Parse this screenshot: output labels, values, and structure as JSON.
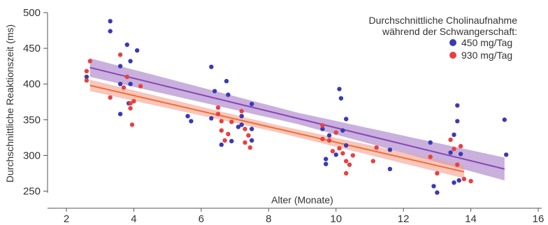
{
  "chart_data": {
    "type": "scatter",
    "title": "",
    "xlabel": "Alter (Monate)",
    "ylabel": "Durchschnittliche Reaktionszeit (ms)",
    "xlim": [
      2,
      16
    ],
    "ylim": [
      230,
      500
    ],
    "x_ticks": [
      2,
      4,
      6,
      8,
      10,
      12,
      14,
      16
    ],
    "y_ticks": [
      250,
      300,
      350,
      400,
      450,
      500
    ],
    "grid": false,
    "legend": {
      "title_lines": [
        "Durchschnittliche Cholinaufnahme",
        "während der Schwangerschaft:"
      ],
      "placement": "top-right"
    },
    "series": [
      {
        "name": "450 mg/Tag",
        "color": "#3a3ab4",
        "trend": {
          "x": [
            2.7,
            15.0
          ],
          "y": [
            423,
            281
          ]
        },
        "band_color": "#a57cc6",
        "band_halfwidth": [
          13,
          8,
          16
        ],
        "points": [
          [
            2.6,
            410
          ],
          [
            3.3,
            488
          ],
          [
            3.3,
            474
          ],
          [
            3.6,
            425
          ],
          [
            3.6,
            400
          ],
          [
            3.6,
            358
          ],
          [
            3.8,
            455
          ],
          [
            3.9,
            432
          ],
          [
            3.9,
            400
          ],
          [
            3.85,
            373
          ],
          [
            4.1,
            447
          ],
          [
            5.6,
            355
          ],
          [
            5.7,
            348
          ],
          [
            6.3,
            424
          ],
          [
            6.4,
            390
          ],
          [
            6.3,
            352
          ],
          [
            6.6,
            315
          ],
          [
            6.75,
            404
          ],
          [
            6.8,
            385
          ],
          [
            6.9,
            320
          ],
          [
            7.1,
            340
          ],
          [
            7.2,
            355
          ],
          [
            7.2,
            343
          ],
          [
            7.5,
            372
          ],
          [
            7.5,
            337
          ],
          [
            7.5,
            321
          ],
          [
            9.6,
            337
          ],
          [
            9.7,
            295
          ],
          [
            9.7,
            288
          ],
          [
            9.8,
            328
          ],
          [
            10.0,
            301
          ],
          [
            10.1,
            393
          ],
          [
            10.15,
            380
          ],
          [
            10.2,
            335
          ],
          [
            10.3,
            351
          ],
          [
            10.3,
            314
          ],
          [
            11.6,
            308
          ],
          [
            11.6,
            281
          ],
          [
            12.8,
            318
          ],
          [
            12.9,
            257
          ],
          [
            13.0,
            248
          ],
          [
            13.4,
            304
          ],
          [
            13.5,
            262
          ],
          [
            13.5,
            329
          ],
          [
            13.6,
            370
          ],
          [
            13.6,
            348
          ],
          [
            13.65,
            265
          ],
          [
            13.7,
            302
          ],
          [
            15.0,
            350
          ],
          [
            15.05,
            301
          ]
        ]
      },
      {
        "name": "930 mg/Tag",
        "color": "#e84040",
        "trend": {
          "x": [
            2.7,
            13.8
          ],
          "y": [
            398,
            277
          ]
        },
        "band_color": "#f4a090",
        "band_halfwidth": [
          8,
          5,
          9
        ],
        "points": [
          [
            2.6,
            418
          ],
          [
            2.6,
            405
          ],
          [
            2.7,
            432
          ],
          [
            3.3,
            381
          ],
          [
            3.6,
            441
          ],
          [
            3.7,
            395
          ],
          [
            3.8,
            410
          ],
          [
            3.9,
            373
          ],
          [
            3.9,
            366
          ],
          [
            3.95,
            343
          ],
          [
            4.0,
            376
          ],
          [
            4.2,
            397
          ],
          [
            6.5,
            367
          ],
          [
            6.5,
            358
          ],
          [
            6.6,
            348
          ],
          [
            6.6,
            335
          ],
          [
            6.7,
            321
          ],
          [
            6.8,
            330
          ],
          [
            6.9,
            347
          ],
          [
            7.2,
            362
          ],
          [
            7.3,
            337
          ],
          [
            7.3,
            318
          ],
          [
            7.4,
            328
          ],
          [
            7.45,
            311
          ],
          [
            9.6,
            342
          ],
          [
            9.6,
            323
          ],
          [
            9.8,
            321
          ],
          [
            9.9,
            306
          ],
          [
            10.0,
            332
          ],
          [
            10.1,
            310
          ],
          [
            10.2,
            303
          ],
          [
            10.3,
            292
          ],
          [
            10.3,
            275
          ],
          [
            10.4,
            287
          ],
          [
            10.5,
            300
          ],
          [
            11.2,
            311
          ],
          [
            11.1,
            292
          ],
          [
            12.8,
            298
          ],
          [
            13.0,
            275
          ],
          [
            13.4,
            322
          ],
          [
            13.5,
            309
          ],
          [
            13.6,
            287
          ],
          [
            13.7,
            313
          ],
          [
            13.8,
            267
          ],
          [
            14.0,
            264
          ]
        ]
      }
    ]
  }
}
